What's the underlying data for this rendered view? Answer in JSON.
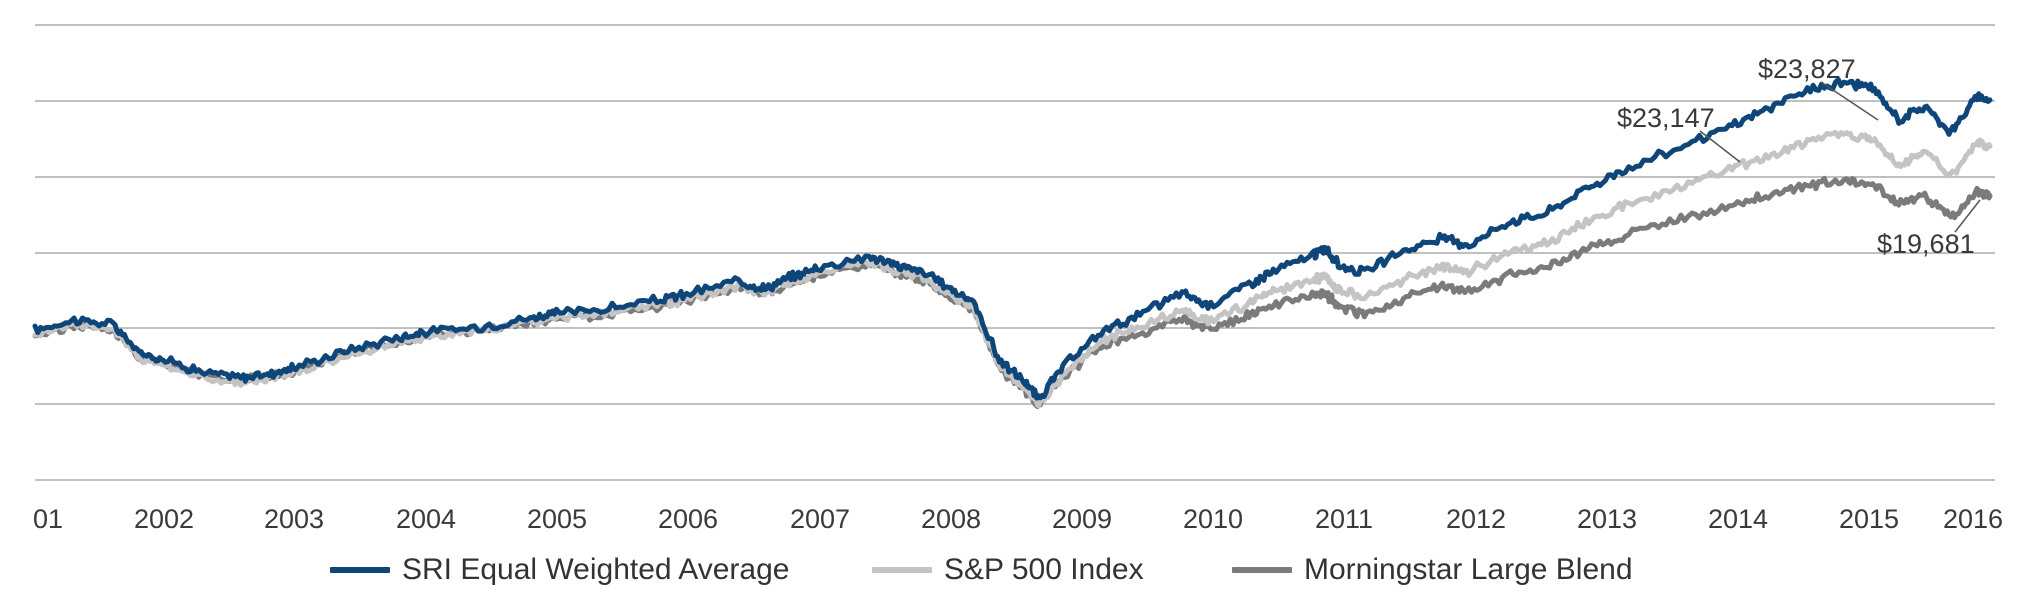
{
  "chart_data": {
    "type": "line",
    "title": "",
    "xlabel": "",
    "ylabel": "",
    "x_ticks": [
      "01",
      "2002",
      "2003",
      "2004",
      "2005",
      "2006",
      "2007",
      "2008",
      "2009",
      "2010",
      "2011",
      "2012",
      "2013",
      "2014",
      "2015",
      "2016"
    ],
    "grid": "horizontal",
    "legend_position": "bottom",
    "series": [
      {
        "name": "SRI Equal Weighted Average",
        "color": "#0f467a",
        "points": [
          [
            2001.0,
            278
          ],
          [
            2001.3,
            289
          ],
          [
            2001.6,
            284
          ],
          [
            2001.8,
            254
          ],
          [
            2002.0,
            247
          ],
          [
            2002.3,
            233
          ],
          [
            2002.6,
            228
          ],
          [
            2002.8,
            232
          ],
          [
            2003.0,
            239
          ],
          [
            2003.4,
            257
          ],
          [
            2003.8,
            271
          ],
          [
            2004.0,
            276
          ],
          [
            2004.4,
            281
          ],
          [
            2004.8,
            291
          ],
          [
            2005.0,
            296
          ],
          [
            2005.4,
            301
          ],
          [
            2005.8,
            310
          ],
          [
            2006.0,
            316
          ],
          [
            2006.4,
            330
          ],
          [
            2006.6,
            322
          ],
          [
            2006.8,
            334
          ],
          [
            2007.0,
            344
          ],
          [
            2007.4,
            356
          ],
          [
            2007.6,
            347
          ],
          [
            2007.8,
            340
          ],
          [
            2008.0,
            324
          ],
          [
            2008.2,
            308
          ],
          [
            2008.4,
            246
          ],
          [
            2008.6,
            223
          ],
          [
            2008.7,
            205
          ],
          [
            2008.9,
            241
          ],
          [
            2009.2,
            278
          ],
          [
            2009.5,
            296
          ],
          [
            2009.8,
            318
          ],
          [
            2010.0,
            304
          ],
          [
            2010.3,
            326
          ],
          [
            2010.5,
            340
          ],
          [
            2010.8,
            357
          ],
          [
            2010.9,
            364
          ],
          [
            2011.0,
            347
          ],
          [
            2011.2,
            339
          ],
          [
            2011.5,
            362
          ],
          [
            2011.8,
            375
          ],
          [
            2012.0,
            368
          ],
          [
            2012.3,
            392
          ],
          [
            2012.6,
            402
          ],
          [
            2012.9,
            428
          ],
          [
            2013.2,
            447
          ],
          [
            2013.6,
            470
          ],
          [
            2014.0,
            492
          ],
          [
            2014.3,
            512
          ],
          [
            2014.6,
            531
          ],
          [
            2014.9,
            540
          ],
          [
            2015.1,
            533
          ],
          [
            2015.3,
            500
          ],
          [
            2015.5,
            514
          ],
          [
            2015.7,
            487
          ],
          [
            2015.9,
            524
          ],
          [
            2016.0,
            521
          ]
        ]
      },
      {
        "name": "S&P 500 Index",
        "color": "#c4c4c4",
        "points": [
          [
            2001.0,
            274
          ],
          [
            2001.3,
            285
          ],
          [
            2001.6,
            280
          ],
          [
            2001.8,
            248
          ],
          [
            2002.0,
            242
          ],
          [
            2002.3,
            227
          ],
          [
            2002.6,
            222
          ],
          [
            2002.8,
            227
          ],
          [
            2003.0,
            234
          ],
          [
            2003.4,
            251
          ],
          [
            2003.8,
            266
          ],
          [
            2004.0,
            271
          ],
          [
            2004.4,
            277
          ],
          [
            2004.8,
            286
          ],
          [
            2005.0,
            291
          ],
          [
            2005.4,
            297
          ],
          [
            2005.8,
            305
          ],
          [
            2006.0,
            311
          ],
          [
            2006.4,
            325
          ],
          [
            2006.6,
            318
          ],
          [
            2006.8,
            329
          ],
          [
            2007.0,
            338
          ],
          [
            2007.4,
            350
          ],
          [
            2007.6,
            341
          ],
          [
            2007.8,
            334
          ],
          [
            2008.0,
            318
          ],
          [
            2008.2,
            302
          ],
          [
            2008.4,
            240
          ],
          [
            2008.6,
            216
          ],
          [
            2008.7,
            199
          ],
          [
            2008.9,
            233
          ],
          [
            2009.2,
            268
          ],
          [
            2009.5,
            282
          ],
          [
            2009.8,
            300
          ],
          [
            2010.0,
            287
          ],
          [
            2010.3,
            305
          ],
          [
            2010.5,
            318
          ],
          [
            2010.8,
            330
          ],
          [
            2010.9,
            336
          ],
          [
            2011.0,
            320
          ],
          [
            2011.2,
            313
          ],
          [
            2011.5,
            331
          ],
          [
            2011.8,
            346
          ],
          [
            2012.0,
            340
          ],
          [
            2012.3,
            360
          ],
          [
            2012.6,
            370
          ],
          [
            2012.9,
            392
          ],
          [
            2013.2,
            410
          ],
          [
            2013.6,
            429
          ],
          [
            2014.0,
            448
          ],
          [
            2014.3,
            461
          ],
          [
            2014.6,
            478
          ],
          [
            2014.9,
            485
          ],
          [
            2015.1,
            481
          ],
          [
            2015.3,
            452
          ],
          [
            2015.5,
            467
          ],
          [
            2015.7,
            440
          ],
          [
            2015.9,
            475
          ],
          [
            2016.0,
            472
          ]
        ]
      },
      {
        "name": "Morningstar Large Blend",
        "color": "#7b7b7b",
        "points": [
          [
            2001.0,
            272
          ],
          [
            2001.3,
            283
          ],
          [
            2001.6,
            278
          ],
          [
            2001.8,
            251
          ],
          [
            2002.0,
            244
          ],
          [
            2002.3,
            230
          ],
          [
            2002.6,
            225
          ],
          [
            2002.8,
            229
          ],
          [
            2003.0,
            236
          ],
          [
            2003.4,
            253
          ],
          [
            2003.8,
            267
          ],
          [
            2004.0,
            272
          ],
          [
            2004.4,
            277
          ],
          [
            2004.8,
            286
          ],
          [
            2005.0,
            290
          ],
          [
            2005.4,
            295
          ],
          [
            2005.8,
            304
          ],
          [
            2006.0,
            310
          ],
          [
            2006.4,
            323
          ],
          [
            2006.6,
            316
          ],
          [
            2006.8,
            327
          ],
          [
            2007.0,
            336
          ],
          [
            2007.4,
            348
          ],
          [
            2007.6,
            339
          ],
          [
            2007.8,
            332
          ],
          [
            2008.0,
            316
          ],
          [
            2008.2,
            300
          ],
          [
            2008.4,
            238
          ],
          [
            2008.6,
            214
          ],
          [
            2008.7,
            198
          ],
          [
            2008.9,
            230
          ],
          [
            2009.2,
            263
          ],
          [
            2009.5,
            275
          ],
          [
            2009.8,
            290
          ],
          [
            2010.0,
            278
          ],
          [
            2010.3,
            293
          ],
          [
            2010.5,
            304
          ],
          [
            2010.8,
            314
          ],
          [
            2010.9,
            318
          ],
          [
            2011.0,
            302
          ],
          [
            2011.2,
            295
          ],
          [
            2011.5,
            311
          ],
          [
            2011.8,
            324
          ],
          [
            2012.0,
            318
          ],
          [
            2012.3,
            336
          ],
          [
            2012.6,
            345
          ],
          [
            2012.9,
            364
          ],
          [
            2013.2,
            378
          ],
          [
            2013.6,
            394
          ],
          [
            2014.0,
            410
          ],
          [
            2014.3,
            420
          ],
          [
            2014.6,
            431
          ],
          [
            2014.9,
            437
          ],
          [
            2015.1,
            432
          ],
          [
            2015.3,
            410
          ],
          [
            2015.5,
            420
          ],
          [
            2015.7,
            396
          ],
          [
            2015.9,
            424
          ],
          [
            2016.0,
            420
          ]
        ]
      }
    ],
    "annotations": [
      {
        "label": "$23,827",
        "series": "SRI Equal Weighted Average"
      },
      {
        "label": "$23,147",
        "series": "S&P 500 Index"
      },
      {
        "label": "$19,681",
        "series": "Morningstar Large Blend"
      }
    ]
  }
}
